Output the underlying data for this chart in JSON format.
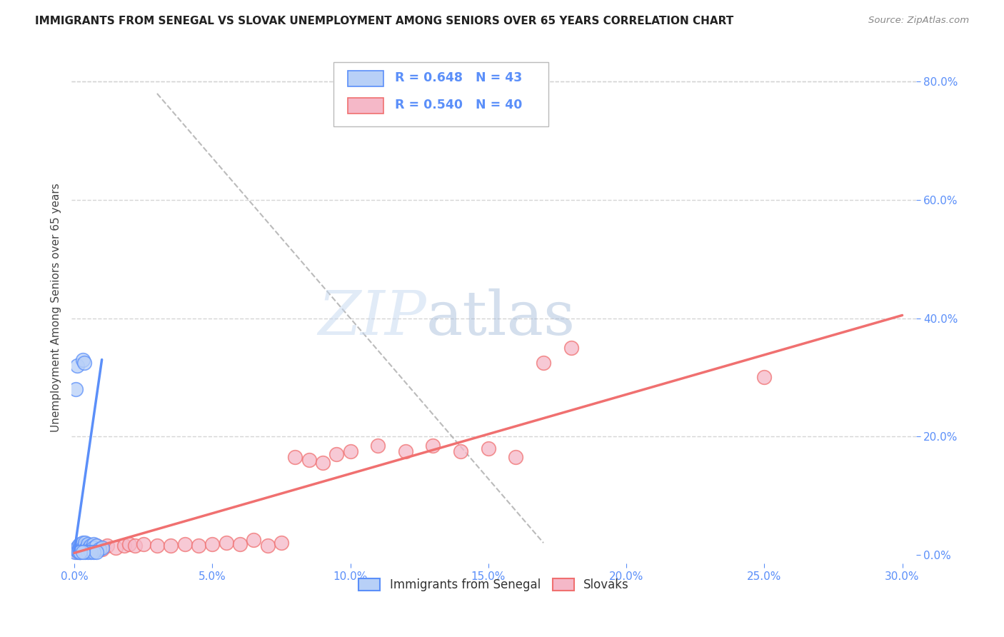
{
  "title": "IMMIGRANTS FROM SENEGAL VS SLOVAK UNEMPLOYMENT AMONG SENIORS OVER 65 YEARS CORRELATION CHART",
  "source": "Source: ZipAtlas.com",
  "ylabel": "Unemployment Among Seniors over 65 years",
  "xlim": [
    -0.001,
    0.305
  ],
  "ylim": [
    -0.015,
    0.85
  ],
  "legend1_label": "R = 0.648   N = 43",
  "legend2_label": "R = 0.540   N = 40",
  "legend_bottom1": "Immigrants from Senegal",
  "legend_bottom2": "Slovaks",
  "senegal_color": "#5b8ff9",
  "senegal_fill": "#b8d0f7",
  "slovak_color": "#f07070",
  "slovak_fill": "#f5b8c8",
  "watermark_zip": "ZIP",
  "watermark_atlas": "atlas",
  "background_color": "#ffffff",
  "grid_color": "#d5d5d5",
  "title_color": "#222222",
  "axis_label_color": "#444444",
  "right_axis_color": "#5b8ff9",
  "bottom_axis_color": "#5b8ff9",
  "senegal_scatter_x": [
    0.0003,
    0.0005,
    0.0008,
    0.001,
    0.0012,
    0.0015,
    0.0018,
    0.002,
    0.002,
    0.0022,
    0.0025,
    0.0028,
    0.003,
    0.003,
    0.0032,
    0.0035,
    0.004,
    0.004,
    0.0042,
    0.0045,
    0.005,
    0.005,
    0.0055,
    0.006,
    0.006,
    0.007,
    0.007,
    0.008,
    0.009,
    0.01,
    0.0005,
    0.001,
    0.0015,
    0.002,
    0.003,
    0.0035,
    0.004,
    0.005,
    0.006,
    0.007,
    0.008,
    0.002,
    0.003
  ],
  "senegal_scatter_y": [
    0.005,
    0.01,
    0.008,
    0.012,
    0.007,
    0.015,
    0.01,
    0.018,
    0.005,
    0.012,
    0.008,
    0.015,
    0.02,
    0.01,
    0.012,
    0.008,
    0.015,
    0.02,
    0.01,
    0.012,
    0.018,
    0.008,
    0.012,
    0.015,
    0.01,
    0.018,
    0.012,
    0.015,
    0.01,
    0.012,
    0.28,
    0.32,
    0.005,
    0.005,
    0.33,
    0.325,
    0.005,
    0.005,
    0.005,
    0.005,
    0.005,
    0.005,
    0.005
  ],
  "slovak_scatter_x": [
    0.001,
    0.002,
    0.003,
    0.004,
    0.005,
    0.006,
    0.007,
    0.008,
    0.009,
    0.01,
    0.012,
    0.015,
    0.018,
    0.02,
    0.022,
    0.025,
    0.03,
    0.035,
    0.04,
    0.045,
    0.05,
    0.055,
    0.06,
    0.065,
    0.07,
    0.075,
    0.08,
    0.085,
    0.09,
    0.095,
    0.1,
    0.11,
    0.12,
    0.13,
    0.14,
    0.15,
    0.16,
    0.17,
    0.25,
    0.18
  ],
  "slovak_scatter_y": [
    0.005,
    0.008,
    0.01,
    0.008,
    0.012,
    0.01,
    0.012,
    0.015,
    0.012,
    0.01,
    0.015,
    0.012,
    0.015,
    0.018,
    0.015,
    0.018,
    0.015,
    0.015,
    0.018,
    0.015,
    0.018,
    0.02,
    0.018,
    0.025,
    0.015,
    0.02,
    0.165,
    0.16,
    0.155,
    0.17,
    0.175,
    0.185,
    0.175,
    0.185,
    0.175,
    0.18,
    0.165,
    0.325,
    0.3,
    0.35
  ],
  "senegal_trendline_x": [
    0.0,
    0.01
  ],
  "senegal_trendline_y": [
    0.005,
    0.33
  ],
  "slovak_trendline_x": [
    0.0,
    0.3
  ],
  "slovak_trendline_y": [
    0.003,
    0.405
  ],
  "dashed_line_x": [
    0.03,
    0.17
  ],
  "dashed_line_y": [
    0.78,
    0.02
  ]
}
